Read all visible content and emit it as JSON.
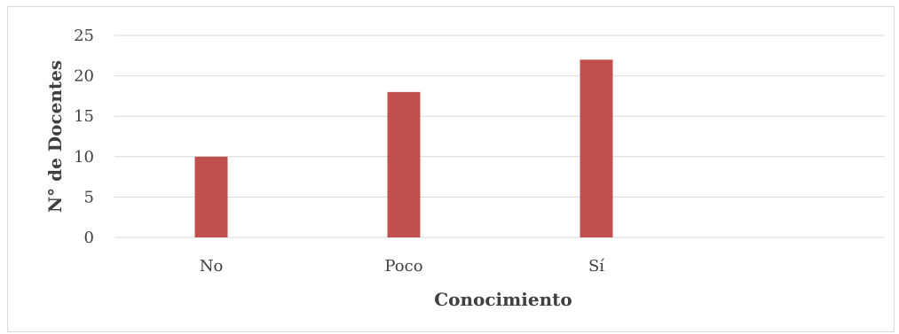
{
  "chart_data": {
    "type": "bar",
    "categories": [
      "No",
      "Poco",
      "Sí"
    ],
    "values": [
      10,
      18,
      22
    ],
    "title": "",
    "xlabel": "Conocimiento",
    "ylabel": "N° de Docentes",
    "ylim": [
      0,
      25
    ],
    "yticks": [
      0,
      5,
      10,
      15,
      20,
      25
    ],
    "grid": true,
    "legend": "none",
    "bar_color": "#c0504d",
    "grid_color": "#d9d9d9"
  }
}
